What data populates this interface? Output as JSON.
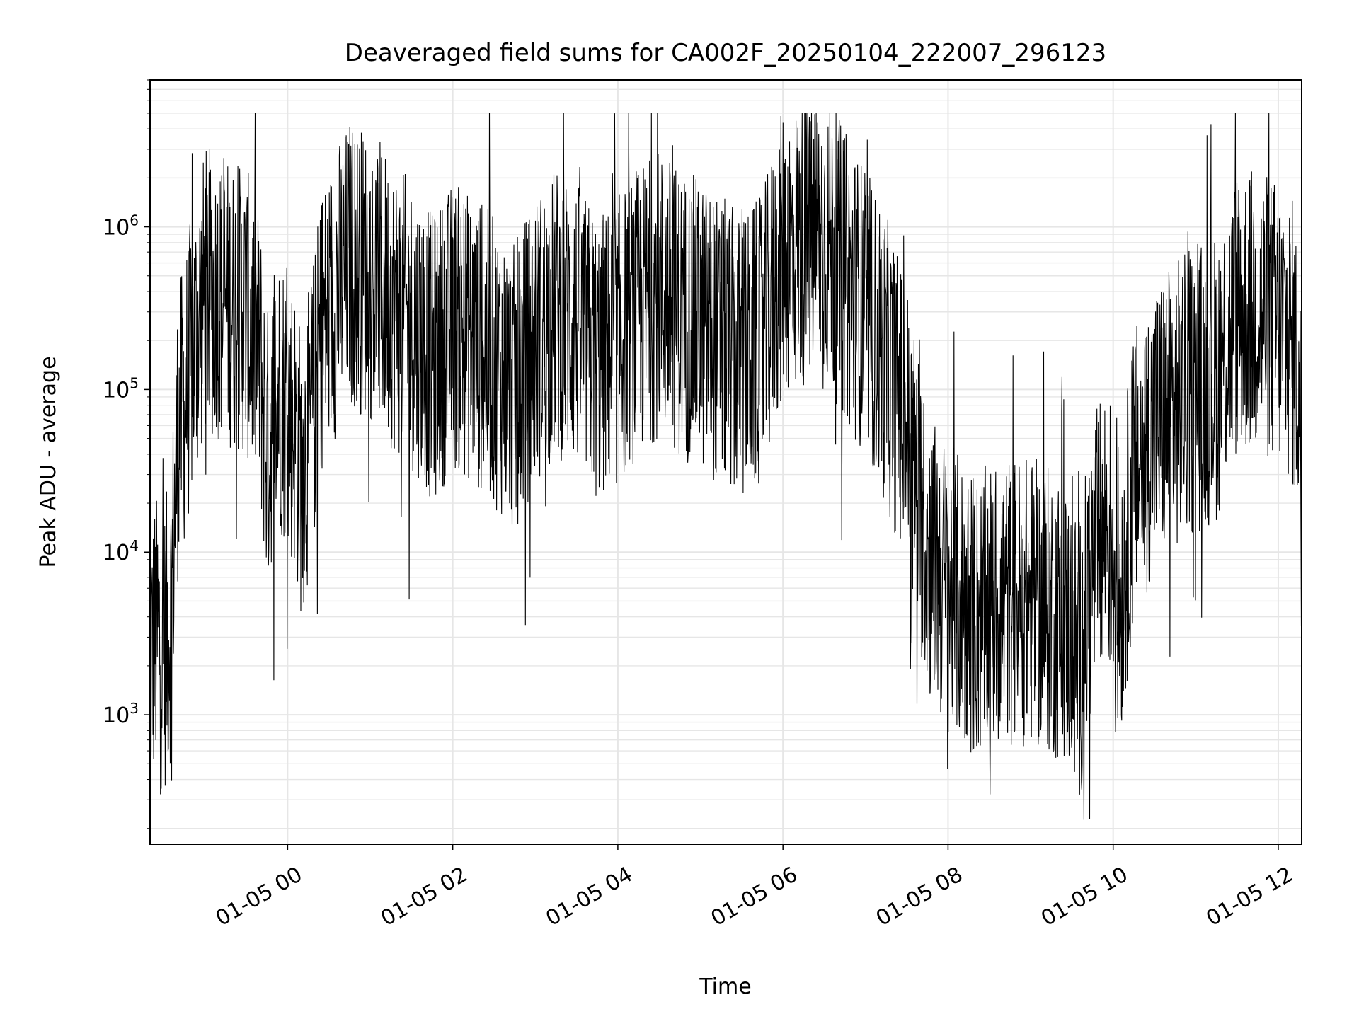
{
  "chart_data": {
    "type": "line",
    "title": "Deaveraged field sums for CA002F_20250104_222007_296123",
    "xlabel": "Time",
    "ylabel": "Peak ADU - average",
    "y_scale": "log",
    "ylim": [
      160,
      8000000
    ],
    "xlim": [
      "2025-01-04 22:20",
      "2025-01-05 12:17"
    ],
    "x_ticks": [
      {
        "label": "01-05 00",
        "x": "2025-01-05 00:00"
      },
      {
        "label": "01-05 02",
        "x": "2025-01-05 02:00"
      },
      {
        "label": "01-05 04",
        "x": "2025-01-05 04:00"
      },
      {
        "label": "01-05 06",
        "x": "2025-01-05 06:00"
      },
      {
        "label": "01-05 08",
        "x": "2025-01-05 08:00"
      },
      {
        "label": "01-05 10",
        "x": "2025-01-05 10:00"
      },
      {
        "label": "01-05 12",
        "x": "2025-01-05 12:00"
      }
    ],
    "y_ticks": [
      {
        "base": "10",
        "exp": "3",
        "value": 1000
      },
      {
        "base": "10",
        "exp": "4",
        "value": 10000
      },
      {
        "base": "10",
        "exp": "5",
        "value": 100000
      },
      {
        "base": "10",
        "exp": "6",
        "value": 1000000
      }
    ],
    "grid": true,
    "line_color": "#000000",
    "grid_color": "#e6e6e6",
    "series": [
      {
        "x": [
          "2025-01-04 22:20",
          "2025-01-04 22:23",
          "2025-01-04 22:26",
          "2025-01-04 22:30",
          "2025-01-04 22:35",
          "2025-01-04 22:40",
          "2025-01-04 22:50",
          "2025-01-04 23:00",
          "2025-01-04 23:15",
          "2025-01-04 23:30",
          "2025-01-04 23:40",
          "2025-01-04 23:45",
          "2025-01-04 23:50",
          "2025-01-04 23:55",
          "2025-01-05 00:05",
          "2025-01-05 00:10",
          "2025-01-05 00:15",
          "2025-01-05 00:20",
          "2025-01-05 00:25",
          "2025-01-05 00:30",
          "2025-01-05 00:35",
          "2025-01-05 00:45",
          "2025-01-05 01:00",
          "2025-01-05 01:10",
          "2025-01-05 01:20",
          "2025-01-05 01:30",
          "2025-01-05 01:40",
          "2025-01-05 01:45",
          "2025-01-05 02:00",
          "2025-01-05 02:15",
          "2025-01-05 02:30",
          "2025-01-05 02:45",
          "2025-01-05 03:00",
          "2025-01-05 03:15",
          "2025-01-05 03:30",
          "2025-01-05 03:45",
          "2025-01-05 04:00",
          "2025-01-05 04:15",
          "2025-01-05 04:30",
          "2025-01-05 04:45",
          "2025-01-05 05:00",
          "2025-01-05 05:15",
          "2025-01-05 05:30",
          "2025-01-05 05:45",
          "2025-01-05 06:00",
          "2025-01-05 06:15",
          "2025-01-05 06:30",
          "2025-01-05 06:45",
          "2025-01-05 07:00",
          "2025-01-05 07:15",
          "2025-01-05 07:30",
          "2025-01-05 07:45",
          "2025-01-05 08:00",
          "2025-01-05 08:20",
          "2025-01-05 08:40",
          "2025-01-05 09:00",
          "2025-01-05 09:20",
          "2025-01-05 09:30",
          "2025-01-05 09:35",
          "2025-01-05 09:45",
          "2025-01-05 09:55",
          "2025-01-05 10:00",
          "2025-01-05 10:05",
          "2025-01-05 10:15",
          "2025-01-05 10:30",
          "2025-01-05 10:45",
          "2025-01-05 11:00",
          "2025-01-05 11:15",
          "2025-01-05 11:30",
          "2025-01-05 11:45",
          "2025-01-05 12:00",
          "2025-01-05 12:10",
          "2025-01-05 12:15",
          "2025-01-05 12:17"
        ],
        "y": [
          2000,
          2800,
          3000,
          2500,
          4000,
          50000,
          150000,
          400000,
          350000,
          300000,
          150000,
          40000,
          80000,
          100000,
          60000,
          30000,
          50000,
          100000,
          250000,
          300000,
          400000,
          600000,
          500000,
          400000,
          300000,
          250000,
          200000,
          150000,
          250000,
          200000,
          150000,
          100000,
          200000,
          300000,
          250000,
          150000,
          200000,
          300000,
          400000,
          300000,
          250000,
          200000,
          150000,
          200000,
          700000,
          800000,
          900000,
          500000,
          300000,
          150000,
          60000,
          10000,
          6000,
          4000,
          5000,
          5000,
          4000,
          3000,
          2000,
          8000,
          15000,
          10000,
          5000,
          30000,
          60000,
          80000,
          100000,
          120000,
          300000,
          300000,
          250000,
          200000,
          100000,
          30000
        ],
        "jitter": 0.9
      }
    ]
  }
}
